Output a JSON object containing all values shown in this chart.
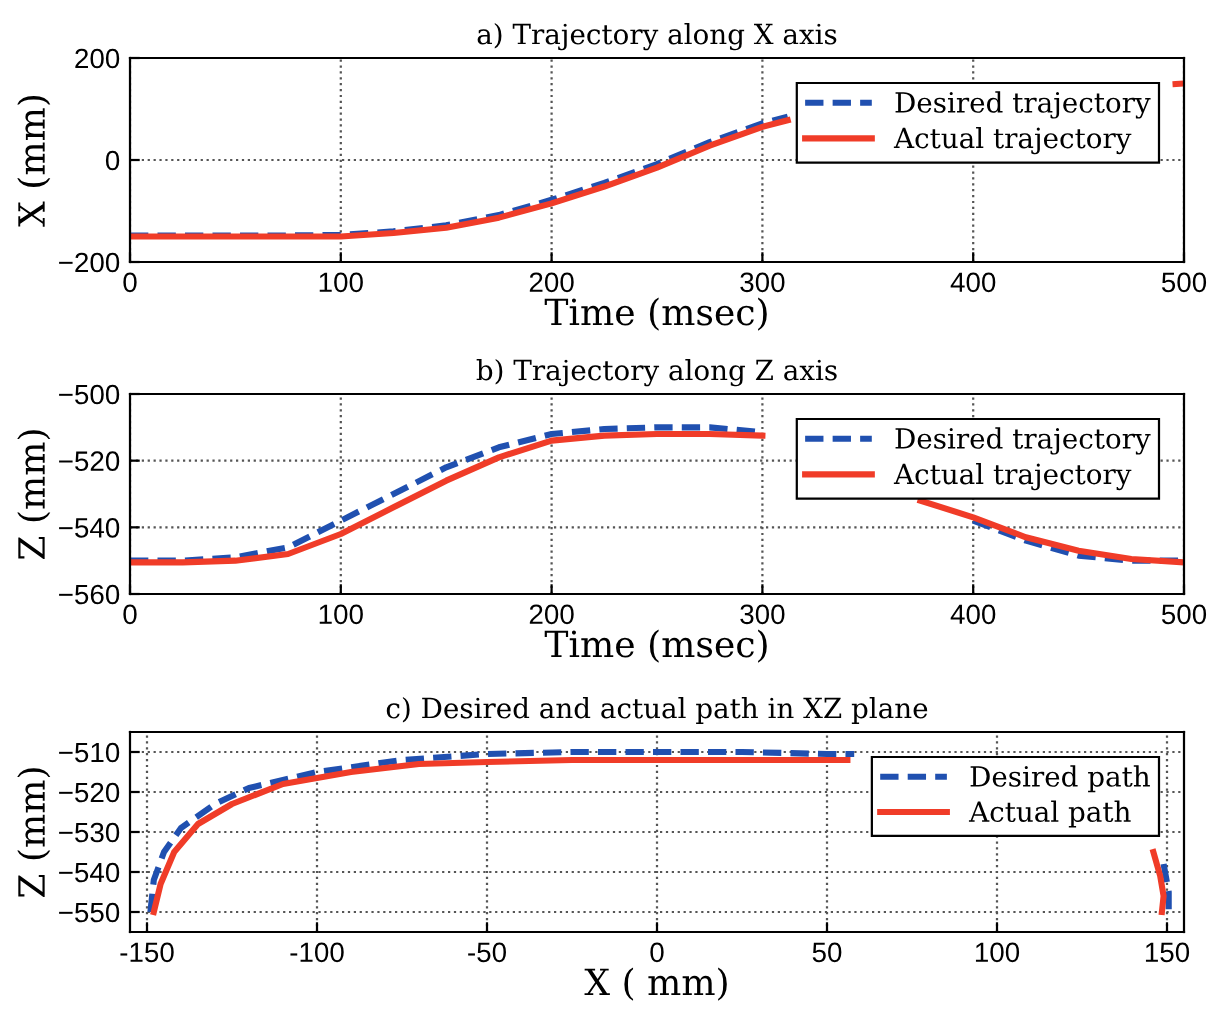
{
  "chart_data": [
    {
      "type": "line",
      "title": "a) Trajectory along X axis",
      "xlabel": "Time (msec)",
      "ylabel": "X (mm)",
      "x": [
        0,
        25,
        50,
        75,
        100,
        125,
        150,
        175,
        200,
        225,
        250,
        275,
        300,
        312,
        350,
        375,
        400,
        425,
        450,
        496,
        500
      ],
      "series": [
        {
          "name": "Desired trajectory",
          "color": "#2050b0",
          "line_style": "dashed",
          "values": [
            -148,
            -148,
            -148,
            -148,
            -147,
            -140,
            -128,
            -108,
            -78,
            -45,
            -8,
            35,
            72,
            85,
            null,
            null,
            null,
            null,
            null,
            null,
            null
          ]
        },
        {
          "name": "Actual trajectory",
          "color": "#f03c28",
          "line_style": "solid",
          "values": [
            -150,
            -150,
            -150,
            -150,
            -150,
            -143,
            -133,
            -113,
            -85,
            -52,
            -15,
            28,
            65,
            78,
            null,
            null,
            null,
            null,
            null,
            149,
            150
          ]
        }
      ],
      "xlim": [
        0,
        500
      ],
      "ylim": [
        -200,
        200
      ],
      "xticks": [
        0,
        100,
        200,
        300,
        400,
        500
      ],
      "yticks": [
        -200,
        0,
        200
      ],
      "grid": true,
      "legend": "top right"
    },
    {
      "type": "line",
      "title": "b) Trajectory along Z axis",
      "xlabel": "Time (msec)",
      "ylabel": "Z (mm)",
      "x": [
        0,
        25,
        50,
        75,
        100,
        125,
        150,
        175,
        200,
        225,
        250,
        275,
        300,
        325,
        350,
        375,
        400,
        425,
        450,
        475,
        500
      ],
      "series": [
        {
          "name": "Desired trajectory",
          "color": "#2050b0",
          "line_style": "dashed",
          "values": [
            -550,
            -550,
            -549,
            -546,
            -538,
            -530,
            -522,
            -516,
            -512,
            -510.5,
            -510,
            -510,
            -511.5,
            null,
            null,
            null,
            -538,
            -544,
            -548.5,
            -550,
            -550
          ]
        },
        {
          "name": "Actual trajectory",
          "color": "#f03c28",
          "line_style": "solid",
          "values": [
            -550.5,
            -550.5,
            -550,
            -548,
            -542,
            -534,
            -526,
            -519,
            -514,
            -512.5,
            -512,
            -512,
            -512.5,
            null,
            null,
            -532,
            -537,
            -543,
            -547,
            -549.5,
            -550.5
          ]
        }
      ],
      "xlim": [
        0,
        500
      ],
      "ylim": [
        -560,
        -500
      ],
      "xticks": [
        0,
        100,
        200,
        300,
        400,
        500
      ],
      "yticks": [
        -560,
        -540,
        -520,
        -500
      ],
      "grid": true,
      "legend": "top right"
    },
    {
      "type": "line",
      "title": "c) Desired and actual path in XZ plane",
      "xlabel": "X ( mm)",
      "ylabel": "Z (mm)",
      "series": [
        {
          "name": "Desired path",
          "color": "#2050b0",
          "line_style": "dashed",
          "x": [
            -149,
            -148,
            -145,
            -140,
            -130,
            -120,
            -100,
            -75,
            -50,
            -25,
            0,
            25,
            50,
            58,
            110,
            149,
            150.5,
            150.5
          ],
          "values": [
            -550,
            -542,
            -535,
            -529,
            -523,
            -519,
            -515,
            -512,
            -510.5,
            -510,
            -510,
            -510,
            -510.5,
            -510.5,
            null,
            -538,
            -545,
            -550
          ]
        },
        {
          "name": "Actual path",
          "color": "#f03c28",
          "line_style": "solid",
          "x": [
            -148,
            -146,
            -142,
            -135,
            -125,
            -110,
            -90,
            -70,
            -50,
            -25,
            0,
            25,
            50,
            56,
            110,
            146,
            148,
            149,
            148.5
          ],
          "values": [
            -550,
            -543,
            -535,
            -528,
            -523,
            -518,
            -515,
            -513,
            -512.5,
            -512,
            -512,
            -512,
            -512,
            -512,
            null,
            -535,
            -541,
            -546,
            -550
          ]
        }
      ],
      "xlim": [
        -155,
        155
      ],
      "ylim": [
        -555,
        -505
      ],
      "xticks": [
        -150,
        -100,
        -50,
        0,
        50,
        100,
        150
      ],
      "yticks": [
        -550,
        -540,
        -530,
        -520,
        -510
      ],
      "grid": true,
      "legend": "top right"
    }
  ]
}
